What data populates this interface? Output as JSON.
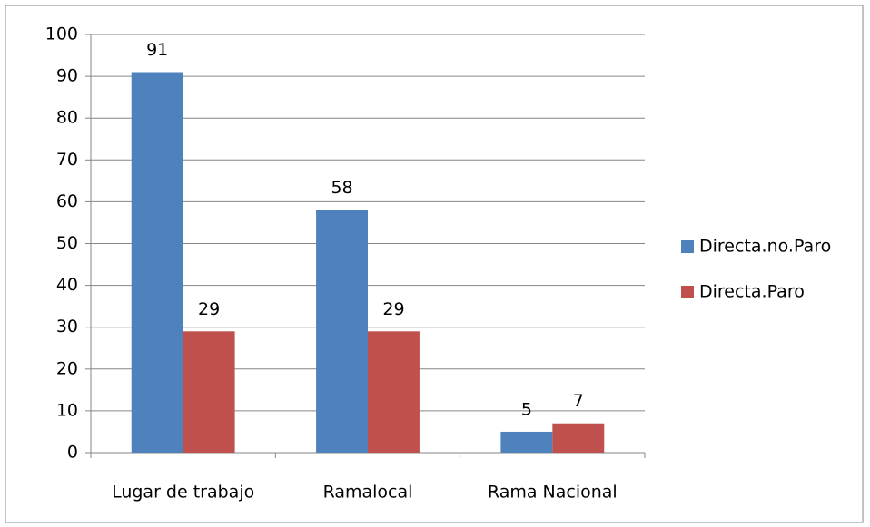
{
  "chart_data": {
    "type": "bar",
    "categories": [
      "Lugar de trabajo",
      "Ramalocal",
      "Rama Nacional"
    ],
    "series": [
      {
        "name": "Directa.no.Paro",
        "color": "#4f81bd",
        "values": [
          91,
          58,
          5
        ]
      },
      {
        "name": "Directa.Paro",
        "color": "#c0504d",
        "values": [
          29,
          29,
          7
        ]
      }
    ],
    "ylim": [
      0,
      100
    ],
    "yticks": [
      0,
      10,
      20,
      30,
      40,
      50,
      60,
      70,
      80,
      90,
      100
    ],
    "grid": true,
    "legend": "right"
  }
}
